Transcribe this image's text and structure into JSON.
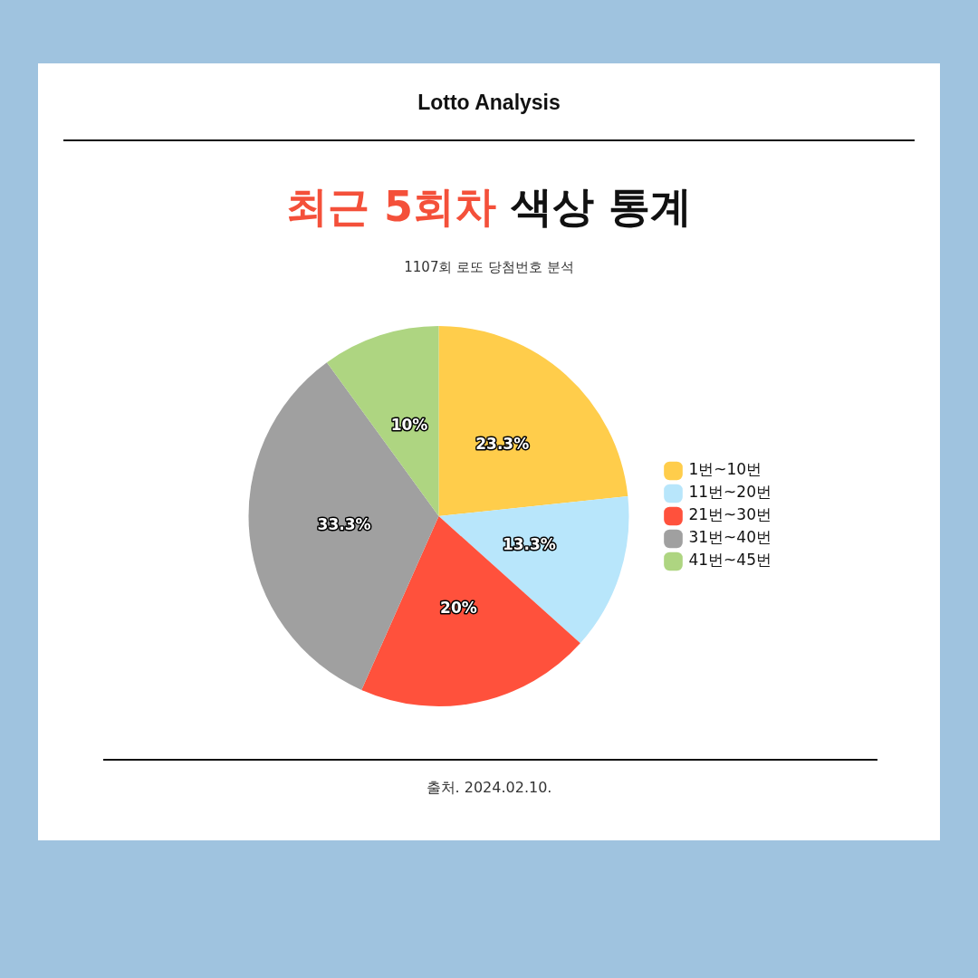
{
  "chart_data": {
    "type": "pie",
    "title": "최근 5회차 색상 통계",
    "subtitle": "1107회 로또 당첨번호 분석",
    "annotations": [
      "Lotto Analysis",
      "출처. 2024.02.10."
    ],
    "categories": [
      "1번~10번",
      "11번~20번",
      "21번~30번",
      "31번~40번",
      "41번~45번"
    ],
    "values": [
      23.3,
      13.3,
      20,
      33.3,
      10
    ],
    "value_labels": [
      "23.3%",
      "13.3%",
      "20%",
      "33.3%",
      "10%"
    ],
    "colors": [
      "#ffcd4b",
      "#b8e6fb",
      "#ff513c",
      "#a0a0a0",
      "#aed581"
    ],
    "legend": "right"
  }
}
